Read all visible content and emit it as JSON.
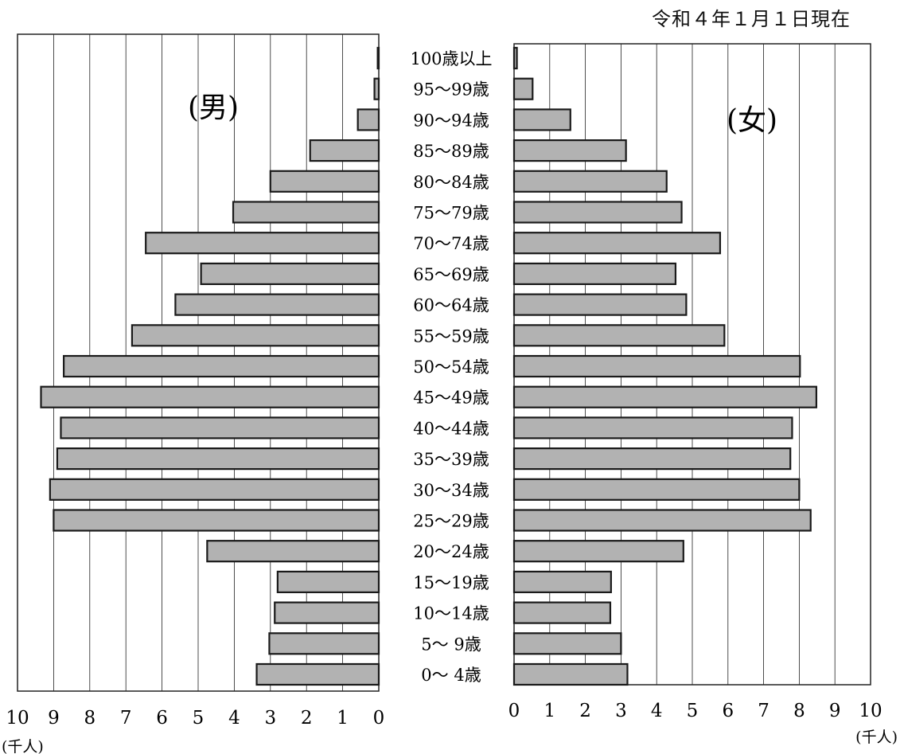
{
  "date_label": "令和４年１月１日現在",
  "chart_data": {
    "type": "bar",
    "orientation": "horizontal",
    "layout": "population-pyramid",
    "age_groups": [
      "100歳以上",
      "95～99歳",
      "90～94歳",
      "85～89歳",
      "80～84歳",
      "75～79歳",
      "70～74歳",
      "65～69歳",
      "60～64歳",
      "55～59歳",
      "50～54歳",
      "45～49歳",
      "40～44歳",
      "35～39歳",
      "30～34歳",
      "25～29歳",
      "20～24歳",
      "15～19歳",
      "10～14歳",
      "5～ 9歳",
      "0～ 4歳"
    ],
    "series": [
      {
        "name": "(男)",
        "side": "left",
        "values": [
          0.03,
          0.12,
          0.58,
          1.9,
          3.0,
          4.03,
          6.45,
          4.92,
          5.63,
          6.83,
          8.72,
          9.35,
          8.8,
          8.9,
          9.1,
          9.0,
          4.75,
          2.8,
          2.88,
          3.03,
          3.38
        ]
      },
      {
        "name": "(女)",
        "side": "right",
        "values": [
          0.08,
          0.52,
          1.58,
          3.14,
          4.28,
          4.7,
          5.78,
          4.53,
          4.83,
          5.9,
          8.02,
          8.48,
          7.8,
          7.75,
          8.0,
          8.32,
          4.75,
          2.72,
          2.7,
          3.0,
          3.18
        ]
      }
    ],
    "xlim": [
      0,
      10
    ],
    "x_ticks": [
      "0",
      "1",
      "2",
      "3",
      "4",
      "5",
      "6",
      "7",
      "8",
      "9",
      "10"
    ],
    "x_unit": "(千人)",
    "grid": true,
    "colors": {
      "bar_fill": "#b2b2b2",
      "bar_stroke": "#1a1a1a",
      "grid": "#222222"
    }
  }
}
